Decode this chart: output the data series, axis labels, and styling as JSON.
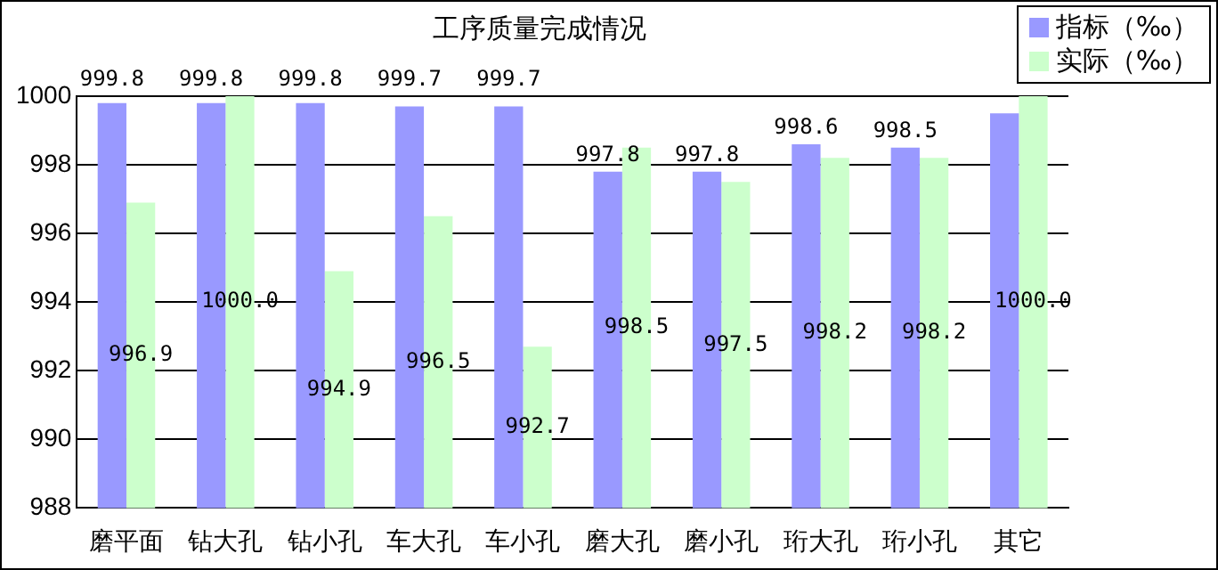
{
  "chart_data": {
    "type": "bar",
    "title": "工序质量完成情况",
    "categories": [
      "磨平面",
      "钻大孔",
      "钻小孔",
      "车大孔",
      "车小孔",
      "磨大孔",
      "磨小孔",
      "珩大孔",
      "珩小孔",
      "其它"
    ],
    "series": [
      {
        "name": "指标（‰）",
        "color": "#9999ff",
        "values": [
          999.8,
          999.8,
          999.8,
          999.7,
          999.7,
          997.8,
          997.8,
          998.6,
          998.5,
          999.5
        ],
        "value_labels": [
          "999.8",
          "999.8",
          "999.8",
          "999.7",
          "999.7",
          "997.8",
          "997.8",
          "998.6",
          "998.5",
          null
        ]
      },
      {
        "name": "实际（‰）",
        "color": "#ccffcc",
        "values": [
          996.9,
          1000.0,
          994.9,
          996.5,
          992.7,
          998.5,
          997.5,
          998.2,
          998.2,
          1000.0
        ],
        "value_labels": [
          "996.9",
          "1000.0",
          "994.9",
          "996.5",
          "992.7",
          "998.5",
          "997.5",
          "998.2",
          "998.2",
          "1000.0"
        ]
      }
    ],
    "ylim": [
      988,
      1000
    ],
    "yticks": [
      988,
      990,
      992,
      994,
      996,
      998,
      1000
    ],
    "grid": "y",
    "legend": "top right"
  }
}
